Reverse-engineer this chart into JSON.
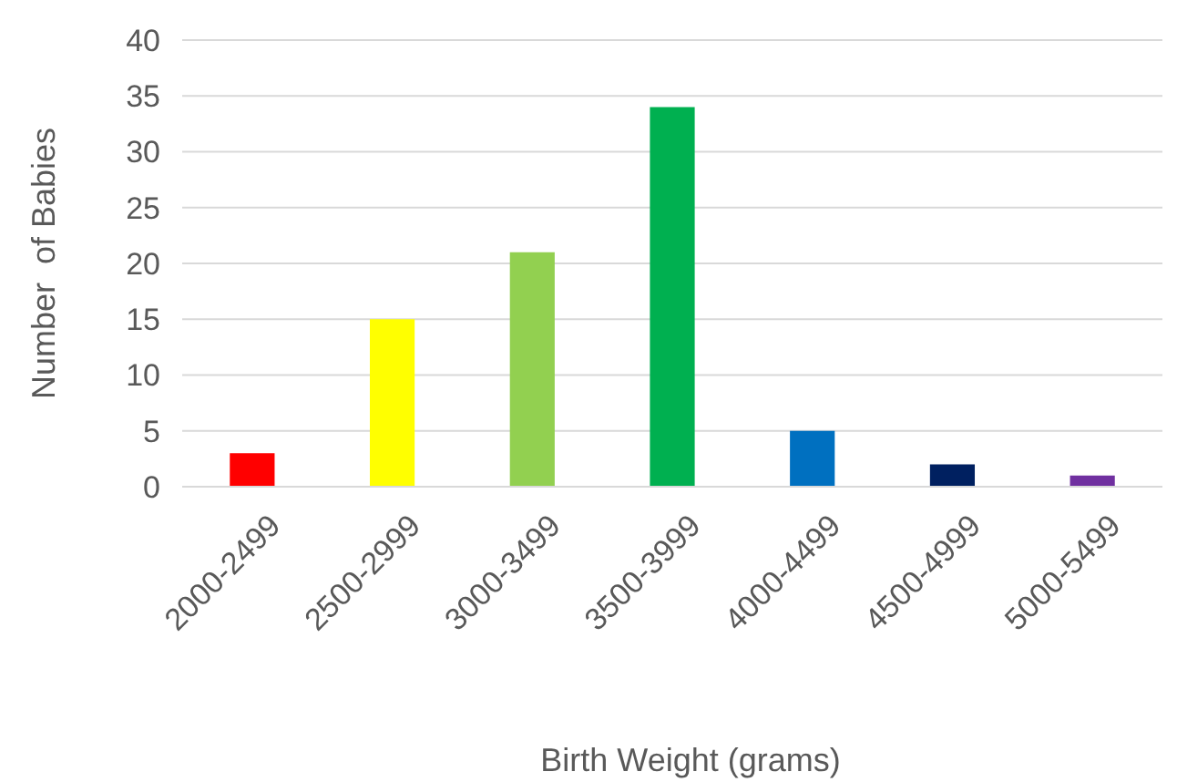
{
  "chart_data": {
    "type": "bar",
    "xlabel": "Birth Weight (grams)",
    "ylabel": "Number  of Babies",
    "categories": [
      "2000-2499",
      "2500-2999",
      "3000-3499",
      "3500-3999",
      "4000-4499",
      "4500-4999",
      "5000-5499"
    ],
    "values": [
      3,
      15,
      21,
      34,
      5,
      2,
      1
    ],
    "colors": [
      "#ff0000",
      "#ffff00",
      "#92d050",
      "#00b050",
      "#0070c0",
      "#002060",
      "#7030a0"
    ],
    "ylim": [
      0,
      40
    ],
    "yticks": [
      0,
      5,
      10,
      15,
      20,
      25,
      30,
      35,
      40
    ],
    "grid": "y"
  }
}
